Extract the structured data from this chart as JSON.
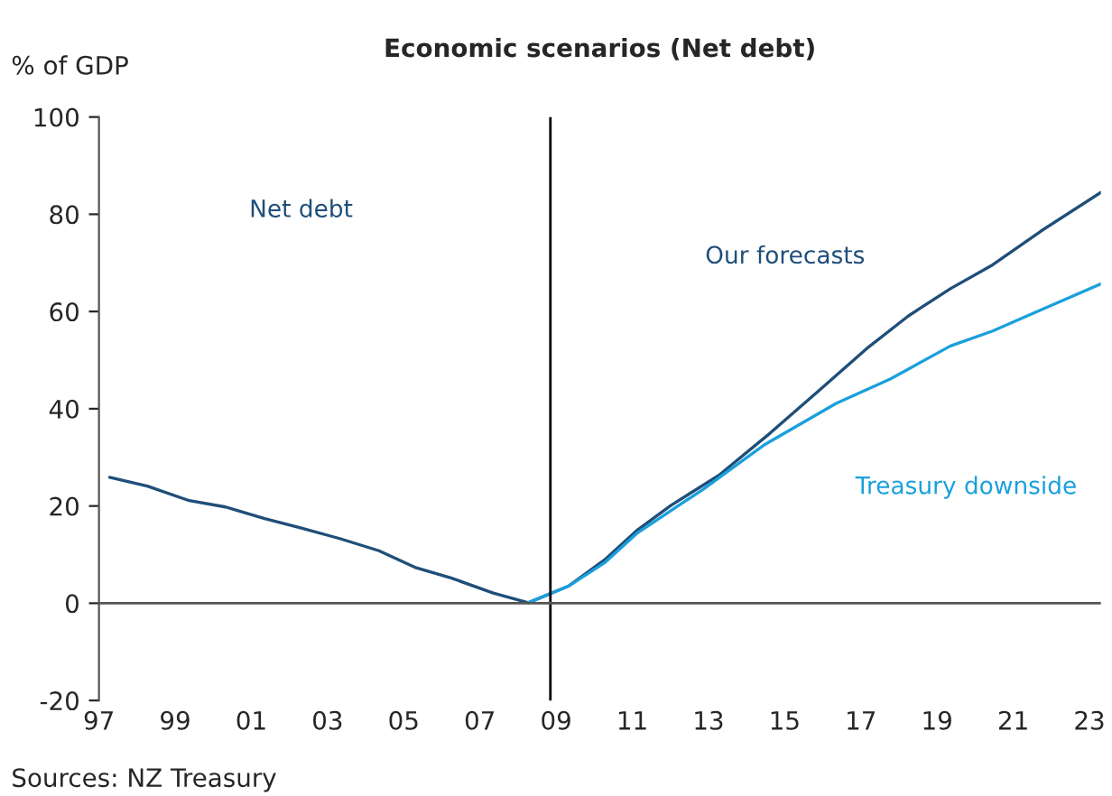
{
  "chart_data": {
    "type": "line",
    "title": "Economic scenarios (Net debt)",
    "ylabel": "% of GDP",
    "annotations": [
      "Net debt",
      "Sources: NZ Treasury"
    ],
    "series": [
      {
        "name": "Our forecasts",
        "color": "#1f4e79",
        "x": [
          1997.28,
          1998.27,
          1999.37,
          2000.32,
          2001.35,
          2002.29,
          2003.32,
          2004.35,
          2005.29,
          2006.24,
          2007.35,
          2008.27,
          2009.32,
          2010.27,
          2011.14,
          2012.01,
          2013.27,
          2014.62,
          2015.88,
          2017.14,
          2018.25,
          2019.35,
          2020.46,
          2021.72,
          2023.3
        ],
        "values": [
          25.9,
          24.1,
          21.1,
          19.8,
          17.4,
          15.5,
          13.3,
          10.8,
          7.4,
          5.2,
          2.1,
          0.1,
          3.5,
          8.9,
          15.1,
          20.1,
          26.3,
          35.0,
          43.6,
          52.3,
          59.1,
          64.7,
          69.6,
          76.5,
          84.5
        ]
      },
      {
        "name": "Treasury downside",
        "color": "#1aa0dc",
        "x": [
          2008.27,
          2009.32,
          2010.27,
          2011.14,
          2012.87,
          2014.45,
          2016.35,
          2017.77,
          2019.35,
          2020.46,
          2021.72,
          2023.3
        ],
        "values": [
          0.1,
          3.5,
          8.3,
          14.5,
          23.5,
          32.5,
          41.1,
          46.1,
          52.9,
          56.0,
          60.3,
          65.7
        ]
      }
    ],
    "xlim": [
      1997,
      2023.3
    ],
    "xticks": [
      {
        "value": 1997,
        "label": "97"
      },
      {
        "value": 1999,
        "label": "99"
      },
      {
        "value": 2001,
        "label": "01"
      },
      {
        "value": 2003,
        "label": "03"
      },
      {
        "value": 2005,
        "label": "05"
      },
      {
        "value": 2007,
        "label": "07"
      },
      {
        "value": 2009,
        "label": "09"
      },
      {
        "value": 2011,
        "label": "11"
      },
      {
        "value": 2013,
        "label": "13"
      },
      {
        "value": 2015,
        "label": "15"
      },
      {
        "value": 2017,
        "label": "17"
      },
      {
        "value": 2019,
        "label": "19"
      },
      {
        "value": 2021,
        "label": "21"
      },
      {
        "value": 2023,
        "label": "23"
      }
    ],
    "ylim": [
      -20,
      100
    ],
    "yticks": [
      -20,
      0,
      20,
      40,
      60,
      80,
      100
    ],
    "ref_lines": [
      {
        "axis": "x",
        "value": 2008.85,
        "color": "#000000"
      },
      {
        "axis": "y",
        "value": 0,
        "color": "#555555"
      }
    ],
    "grid": false,
    "legend": false
  }
}
